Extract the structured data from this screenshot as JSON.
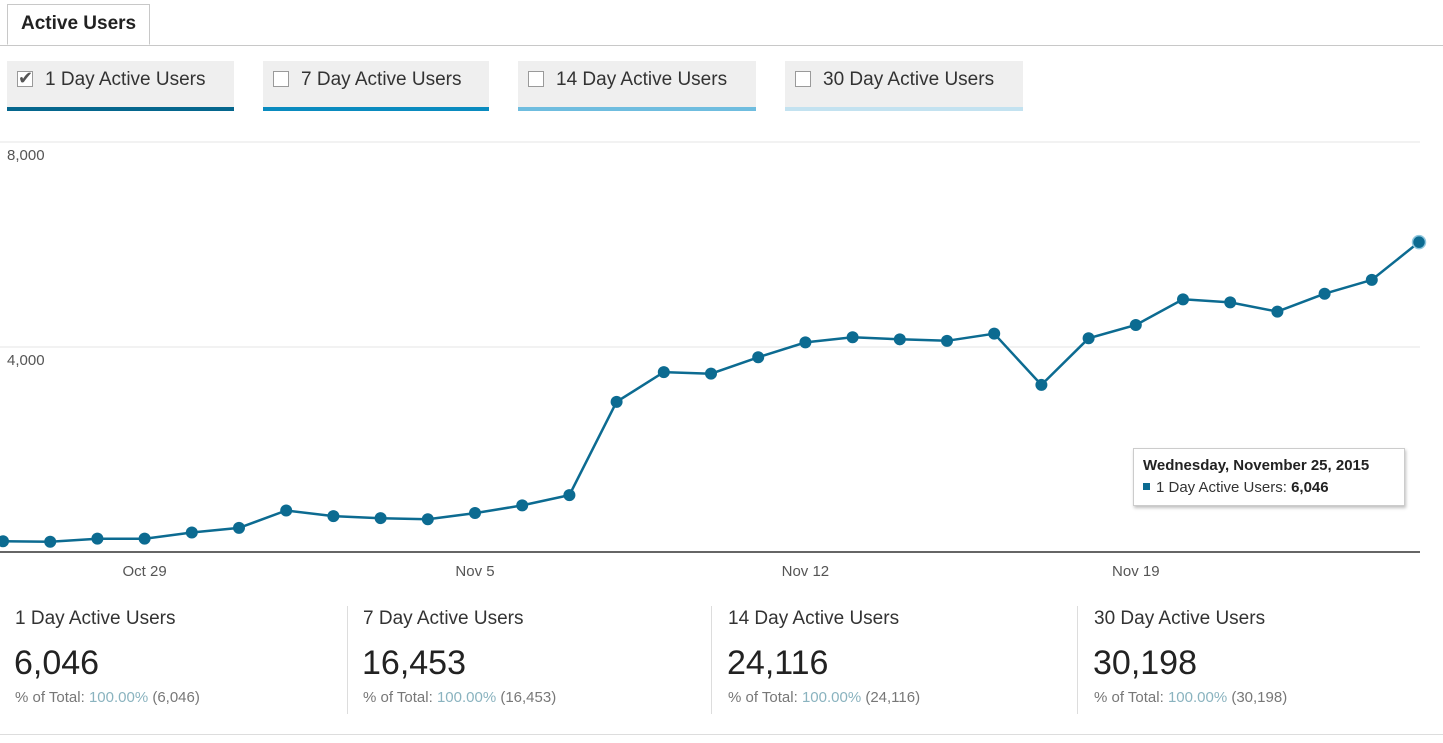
{
  "tab": {
    "label": "Active Users"
  },
  "toggles": [
    {
      "label": "1 Day Active Users",
      "checked": true,
      "color": "#05668d"
    },
    {
      "label": "7 Day Active Users",
      "checked": false,
      "color": "#0a8bbf"
    },
    {
      "label": "14 Day Active Users",
      "checked": false,
      "color": "#6fbddf"
    },
    {
      "label": "30 Day Active Users",
      "checked": false,
      "color": "#c3e2f0"
    }
  ],
  "chart_data": {
    "type": "line",
    "series": [
      {
        "name": "1 Day Active Users",
        "color": "#0c6b91",
        "x": [
          "Oct 26",
          "Oct 27",
          "Oct 28",
          "Oct 29",
          "Oct 30",
          "Oct 31",
          "Nov 1",
          "Nov 2",
          "Nov 3",
          "Nov 4",
          "Nov 5",
          "Nov 6",
          "Nov 7",
          "Nov 8",
          "Nov 9",
          "Nov 10",
          "Nov 11",
          "Nov 12",
          "Nov 13",
          "Nov 14",
          "Nov 15",
          "Nov 16",
          "Nov 17",
          "Nov 18",
          "Nov 19",
          "Nov 20",
          "Nov 21",
          "Nov 22",
          "Nov 23",
          "Nov 24",
          "Nov 25"
        ],
        "values": [
          210,
          200,
          260,
          260,
          380,
          470,
          810,
          700,
          660,
          640,
          760,
          910,
          1110,
          2930,
          3510,
          3480,
          3800,
          4090,
          4190,
          4150,
          4120,
          4260,
          3260,
          4170,
          4430,
          4930,
          4870,
          4690,
          5040,
          5310,
          6046
        ]
      }
    ],
    "x_ticks": [
      "Oct 29",
      "Nov 5",
      "Nov 12",
      "Nov 19"
    ],
    "y_ticks": [
      "8,000",
      "4,000"
    ],
    "ylim": [
      0,
      8000
    ],
    "grid": true
  },
  "tooltip": {
    "title": "Wednesday, November 25, 2015",
    "label": "1 Day Active Users:",
    "value": "6,046"
  },
  "scorecards": [
    {
      "name": "1 Day Active Users",
      "value": "6,046",
      "pct_prefix": "% of Total:",
      "pct": "100.00%",
      "total": "(6,046)"
    },
    {
      "name": "7 Day Active Users",
      "value": "16,453",
      "pct_prefix": "% of Total:",
      "pct": "100.00%",
      "total": "(16,453)"
    },
    {
      "name": "14 Day Active Users",
      "value": "24,116",
      "pct_prefix": "% of Total:",
      "pct": "100.00%",
      "total": "(24,116)"
    },
    {
      "name": "30 Day Active Users",
      "value": "30,198",
      "pct_prefix": "% of Total:",
      "pct": "100.00%",
      "total": "(30,198)"
    }
  ]
}
